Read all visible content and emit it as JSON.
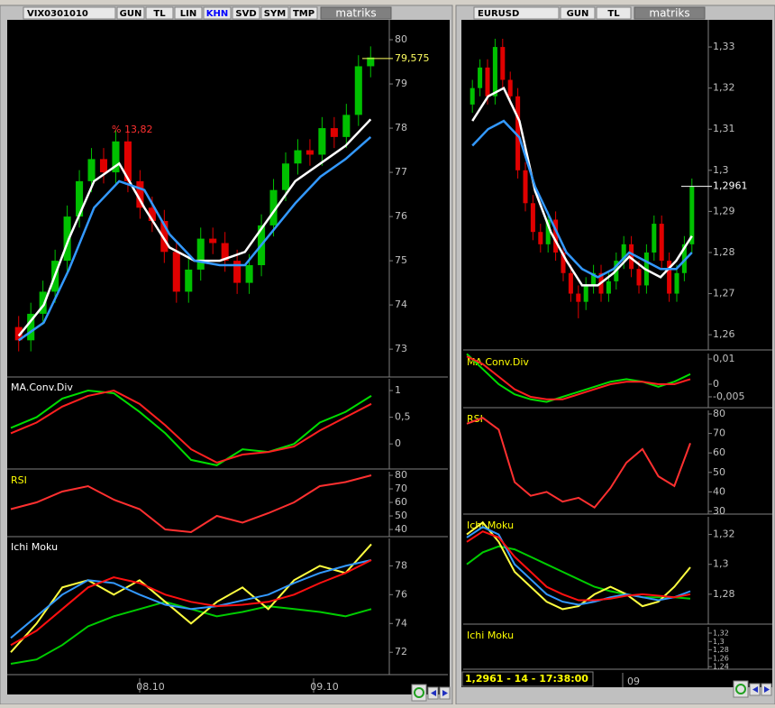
{
  "windows": [
    {
      "symbol": "VIX0301010",
      "tabs": [
        "GUN",
        "TL",
        "LIN",
        "KHN",
        "SVD",
        "SYM",
        "TMP"
      ],
      "logo": "matriks",
      "main": {
        "ylim": [
          72.37,
          80.45
        ],
        "yticks": [
          80,
          79,
          78,
          77,
          76,
          75,
          74,
          73
        ],
        "last": {
          "value": 79.575,
          "label": "79,575"
        },
        "annotation": "% 13,82",
        "candles": [
          [
            73.5,
            73.75,
            72.95,
            73.2
          ],
          [
            73.2,
            74.05,
            72.95,
            73.8
          ],
          [
            73.8,
            74.55,
            73.55,
            74.3
          ],
          [
            74.3,
            75.25,
            74.05,
            75.0
          ],
          [
            75.0,
            76.25,
            74.75,
            76.0
          ],
          [
            76.0,
            77.05,
            75.75,
            76.8
          ],
          [
            76.8,
            77.55,
            76.55,
            77.3
          ],
          [
            77.3,
            77.55,
            76.75,
            77.0
          ],
          [
            77.0,
            77.95,
            76.75,
            77.7
          ],
          [
            77.7,
            77.95,
            76.55,
            76.8
          ],
          [
            76.8,
            77.05,
            75.95,
            76.2
          ],
          [
            76.2,
            76.45,
            75.65,
            75.9
          ],
          [
            75.9,
            76.15,
            74.95,
            75.2
          ],
          [
            75.2,
            75.45,
            74.05,
            74.3
          ],
          [
            74.3,
            75.05,
            74.05,
            74.8
          ],
          [
            74.8,
            75.75,
            74.55,
            75.5
          ],
          [
            75.5,
            75.75,
            75.15,
            75.4
          ],
          [
            75.4,
            75.65,
            74.75,
            75.0
          ],
          [
            75.0,
            75.25,
            74.25,
            74.5
          ],
          [
            74.5,
            75.15,
            74.25,
            74.9
          ],
          [
            74.9,
            76.05,
            74.65,
            75.8
          ],
          [
            75.8,
            76.85,
            75.55,
            76.6
          ],
          [
            76.6,
            77.45,
            76.35,
            77.2
          ],
          [
            77.2,
            77.75,
            76.95,
            77.5
          ],
          [
            77.5,
            77.75,
            77.15,
            77.4
          ],
          [
            77.4,
            78.25,
            77.15,
            78.0
          ],
          [
            78.0,
            78.25,
            77.55,
            77.8
          ],
          [
            77.8,
            78.55,
            77.55,
            78.3
          ],
          [
            78.3,
            79.65,
            78.05,
            79.4
          ],
          [
            79.4,
            79.85,
            79.15,
            79.6
          ]
        ],
        "lines": [
          {
            "color": "#ffffff",
            "values": [
              73.3,
              74.0,
              75.5,
              76.8,
              77.2,
              76.2,
              75.3,
              75.0,
              75.0,
              75.2,
              76.0,
              76.8,
              77.2,
              77.6,
              78.2
            ]
          },
          {
            "color": "#3399ff",
            "values": [
              73.2,
              73.6,
              74.8,
              76.2,
              76.8,
              76.6,
              75.6,
              75.0,
              74.9,
              74.9,
              75.6,
              76.3,
              76.9,
              77.3,
              77.8
            ]
          }
        ]
      },
      "panels": [
        {
          "title": "MA.Conv.Div",
          "ylim": [
            -0.47,
            1.22
          ],
          "yticks": [
            1,
            {
              "value": 0.5,
              "label": "0,5"
            },
            0
          ],
          "series": [
            {
              "color": "#00dd00",
              "values": [
                0.3,
                0.5,
                0.85,
                1.0,
                0.95,
                0.6,
                0.2,
                -0.3,
                -0.4,
                -0.1,
                -0.15,
                0.0,
                0.4,
                0.6,
                0.9
              ]
            },
            {
              "color": "#ff2020",
              "values": [
                0.2,
                0.4,
                0.7,
                0.9,
                1.0,
                0.75,
                0.35,
                -0.1,
                -0.35,
                -0.2,
                -0.15,
                -0.05,
                0.25,
                0.5,
                0.75
              ]
            }
          ]
        },
        {
          "title": "RSI",
          "ylim": [
            34.7,
            82.7
          ],
          "yticks": [
            80,
            70,
            60,
            50,
            40
          ],
          "series": [
            {
              "color": "#ff3030",
              "values": [
                55,
                60,
                68,
                72,
                62,
                55,
                40,
                38,
                50,
                45,
                52,
                60,
                72,
                75,
                80
              ]
            }
          ]
        },
        {
          "title": "Ichi Moku",
          "ylim": [
            70.45,
            79.9
          ],
          "yticks": [
            78,
            76,
            74,
            72
          ],
          "series": [
            {
              "color": "#00cc00",
              "values": [
                71.2,
                71.5,
                72.5,
                73.8,
                74.5,
                75.0,
                75.5,
                75.0,
                74.5,
                74.8,
                75.2,
                75.0,
                74.8,
                74.5,
                75.0
              ]
            },
            {
              "color": "#ffff40",
              "values": [
                72.0,
                74.0,
                76.5,
                77.0,
                76.0,
                77.0,
                75.5,
                74.0,
                75.5,
                76.5,
                75.0,
                77.0,
                78.0,
                77.5,
                79.5
              ]
            },
            {
              "color": "#3399ff",
              "values": [
                73.0,
                74.5,
                76.0,
                77.0,
                76.8,
                76.0,
                75.3,
                75.0,
                75.2,
                75.6,
                76.0,
                76.8,
                77.5,
                78.0,
                78.4
              ]
            },
            {
              "color": "#ff1010",
              "values": [
                72.5,
                73.5,
                75.0,
                76.5,
                77.2,
                76.8,
                76.0,
                75.5,
                75.2,
                75.3,
                75.5,
                76.0,
                76.8,
                77.5,
                78.4
              ]
            }
          ]
        }
      ],
      "dates": [
        "08.10",
        "09.10"
      ]
    },
    {
      "symbol": "EURUSD",
      "tabs": [
        "GUN",
        "TL"
      ],
      "logo": "matriks",
      "main": {
        "ylim": [
          1.2563,
          1.3366
        ],
        "yticks": [
          {
            "value": 1.33,
            "label": "1,33"
          },
          {
            "value": 1.32,
            "label": "1,32"
          },
          {
            "value": 1.31,
            "label": "1,31"
          },
          {
            "value": 1.3,
            "label": "1,3"
          },
          {
            "value": 1.29,
            "label": "1,29"
          },
          {
            "value": 1.28,
            "label": "1,28"
          },
          {
            "value": 1.27,
            "label": "1,27"
          },
          {
            "value": 1.26,
            "label": "1,26"
          }
        ],
        "last": {
          "value": 1.2961,
          "label": "1,2961"
        },
        "candles": [
          [
            1.316,
            1.322,
            1.314,
            1.32
          ],
          [
            1.32,
            1.327,
            1.318,
            1.325
          ],
          [
            1.325,
            1.327,
            1.316,
            1.318
          ],
          [
            1.318,
            1.332,
            1.316,
            1.33
          ],
          [
            1.33,
            1.332,
            1.32,
            1.322
          ],
          [
            1.322,
            1.324,
            1.316,
            1.318
          ],
          [
            1.318,
            1.32,
            1.298,
            1.3
          ],
          [
            1.3,
            1.302,
            1.29,
            1.292
          ],
          [
            1.292,
            1.294,
            1.283,
            1.285
          ],
          [
            1.285,
            1.287,
            1.28,
            1.282
          ],
          [
            1.282,
            1.29,
            1.28,
            1.288
          ],
          [
            1.288,
            1.29,
            1.278,
            1.28
          ],
          [
            1.28,
            1.282,
            1.273,
            1.275
          ],
          [
            1.275,
            1.277,
            1.268,
            1.27
          ],
          [
            1.27,
            1.272,
            1.264,
            1.268
          ],
          [
            1.268,
            1.274,
            1.266,
            1.272
          ],
          [
            1.272,
            1.277,
            1.27,
            1.275
          ],
          [
            1.275,
            1.277,
            1.268,
            1.27
          ],
          [
            1.27,
            1.275,
            1.268,
            1.273
          ],
          [
            1.273,
            1.28,
            1.271,
            1.278
          ],
          [
            1.278,
            1.284,
            1.276,
            1.282
          ],
          [
            1.282,
            1.284,
            1.274,
            1.276
          ],
          [
            1.276,
            1.278,
            1.27,
            1.272
          ],
          [
            1.272,
            1.282,
            1.27,
            1.28
          ],
          [
            1.28,
            1.289,
            1.278,
            1.287
          ],
          [
            1.287,
            1.289,
            1.276,
            1.278
          ],
          [
            1.278,
            1.28,
            1.268,
            1.27
          ],
          [
            1.27,
            1.277,
            1.268,
            1.275
          ],
          [
            1.275,
            1.284,
            1.273,
            1.282
          ],
          [
            1.282,
            1.298,
            1.28,
            1.296
          ]
        ],
        "lines": [
          {
            "color": "#ffffff",
            "values": [
              1.312,
              1.318,
              1.32,
              1.312,
              1.295,
              1.285,
              1.278,
              1.272,
              1.272,
              1.275,
              1.279,
              1.276,
              1.274,
              1.278,
              1.284
            ]
          },
          {
            "color": "#3399ff",
            "values": [
              1.306,
              1.31,
              1.312,
              1.308,
              1.296,
              1.288,
              1.28,
              1.276,
              1.274,
              1.276,
              1.28,
              1.278,
              1.276,
              1.276,
              1.28
            ]
          }
        ]
      },
      "panels": [
        {
          "title": "MA.Conv.Div",
          "ylim": [
            -0.00929,
            0.01214
          ],
          "yticks": [
            {
              "value": 0.01,
              "label": "0,01"
            },
            0,
            {
              "value": -0.005,
              "label": "-0,005"
            }
          ],
          "series": [
            {
              "color": "#00dd00",
              "values": [
                0.012,
                0.006,
                0.0,
                -0.004,
                -0.006,
                -0.007,
                -0.005,
                -0.003,
                -0.001,
                0.001,
                0.002,
                0.001,
                -0.001,
                0.001,
                0.004
              ]
            },
            {
              "color": "#ff2020",
              "values": [
                0.011,
                0.008,
                0.003,
                -0.002,
                -0.005,
                -0.006,
                -0.006,
                -0.004,
                -0.002,
                0.0,
                0.001,
                0.001,
                0.0,
                0.0,
                0.002
              ]
            }
          ]
        },
        {
          "title": "RSI",
          "ylim": [
            28.6,
            81.85
          ],
          "yticks": [
            80,
            70,
            60,
            50,
            40,
            30
          ],
          "series": [
            {
              "color": "#ff3030",
              "values": [
                75,
                78,
                72,
                45,
                38,
                40,
                35,
                37,
                32,
                42,
                55,
                62,
                48,
                43,
                65
              ]
            }
          ]
        },
        {
          "title": "Ichi Moku",
          "ylim": [
            1.26,
            1.3318
          ],
          "yticks": [
            {
              "value": 1.32,
              "label": "1,32"
            },
            {
              "value": 1.3,
              "label": "1,3"
            },
            {
              "value": 1.28,
              "label": "1,28"
            }
          ],
          "series": [
            {
              "color": "#00cc00",
              "values": [
                1.3,
                1.308,
                1.312,
                1.31,
                1.305,
                1.3,
                1.295,
                1.29,
                1.285,
                1.282,
                1.28,
                1.278,
                1.278,
                1.278,
                1.277
              ]
            },
            {
              "color": "#ffff40",
              "values": [
                1.32,
                1.328,
                1.315,
                1.295,
                1.285,
                1.275,
                1.27,
                1.272,
                1.28,
                1.285,
                1.28,
                1.272,
                1.275,
                1.285,
                1.298
              ]
            },
            {
              "color": "#3399ff",
              "values": [
                1.318,
                1.325,
                1.32,
                1.3,
                1.29,
                1.28,
                1.275,
                1.273,
                1.275,
                1.278,
                1.28,
                1.278,
                1.276,
                1.278,
                1.282
              ]
            },
            {
              "color": "#ff1010",
              "values": [
                1.315,
                1.322,
                1.318,
                1.305,
                1.295,
                1.285,
                1.28,
                1.276,
                1.276,
                1.277,
                1.279,
                1.28,
                1.279,
                1.278,
                1.28
              ]
            }
          ]
        },
        {
          "title": "Ichi Moku",
          "ylim": [
            1.234,
            1.335
          ],
          "yticks": [
            {
              "value": 1.32,
              "label": "1,32"
            },
            {
              "value": 1.3,
              "label": "1,3"
            },
            {
              "value": 1.28,
              "label": "1,28"
            },
            {
              "value": 1.26,
              "label": "1,26"
            },
            {
              "value": 1.24,
              "label": "1,24"
            }
          ],
          "series": []
        }
      ],
      "dates": [
        "09"
      ]
    }
  ],
  "status": "1,2961 - 14 - 17:38:00"
}
